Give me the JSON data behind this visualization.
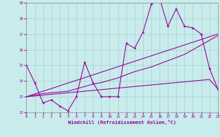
{
  "xlabel": "Windchill (Refroidissement éolien,°C)",
  "ylabel": "",
  "bg_color": "#c8ecec",
  "line_color": "#990099",
  "grid_color": "#aacccc",
  "xmin": 0,
  "xmax": 23,
  "ymin": 12,
  "ymax": 19,
  "line1_x": [
    0,
    1,
    2,
    3,
    4,
    5,
    6,
    7,
    8,
    9,
    10,
    11,
    12,
    13,
    14,
    15,
    16,
    17,
    18,
    19,
    20,
    21,
    22,
    23
  ],
  "line1_y": [
    15.0,
    13.9,
    12.6,
    12.8,
    12.4,
    12.1,
    13.0,
    15.2,
    13.9,
    13.0,
    13.0,
    13.0,
    16.4,
    16.1,
    17.1,
    18.9,
    19.3,
    17.5,
    18.6,
    17.5,
    17.4,
    17.0,
    14.8,
    13.5
  ],
  "line2_x": [
    0,
    1,
    2,
    3,
    4,
    5,
    6,
    7,
    8,
    9,
    10,
    11,
    12,
    13,
    14,
    15,
    16,
    17,
    18,
    19,
    20,
    21,
    22,
    23
  ],
  "line2_y": [
    13.0,
    13.1,
    13.2,
    13.25,
    13.3,
    13.35,
    13.5,
    13.65,
    13.8,
    13.9,
    14.05,
    14.2,
    14.4,
    14.6,
    14.75,
    14.9,
    15.1,
    15.3,
    15.5,
    15.7,
    16.0,
    16.3,
    16.6,
    16.9
  ],
  "line3_x": [
    0,
    1,
    2,
    3,
    4,
    5,
    6,
    7,
    8,
    9,
    10,
    11,
    12,
    13,
    14,
    15,
    16,
    17,
    18,
    19,
    20,
    21,
    22,
    23
  ],
  "line3_y": [
    13.0,
    13.05,
    13.1,
    13.15,
    13.2,
    13.25,
    13.3,
    13.35,
    13.4,
    13.45,
    13.5,
    13.55,
    13.6,
    13.65,
    13.7,
    13.75,
    13.8,
    13.85,
    13.9,
    13.95,
    14.0,
    14.05,
    14.1,
    13.5
  ],
  "line4_x": [
    0,
    23
  ],
  "line4_y": [
    13.0,
    17.0
  ],
  "yticks": [
    12,
    13,
    14,
    15,
    16,
    17,
    18,
    19
  ],
  "xticks": [
    0,
    1,
    2,
    3,
    4,
    5,
    6,
    7,
    8,
    9,
    10,
    11,
    12,
    13,
    14,
    15,
    16,
    17,
    18,
    19,
    20,
    21,
    22,
    23
  ]
}
